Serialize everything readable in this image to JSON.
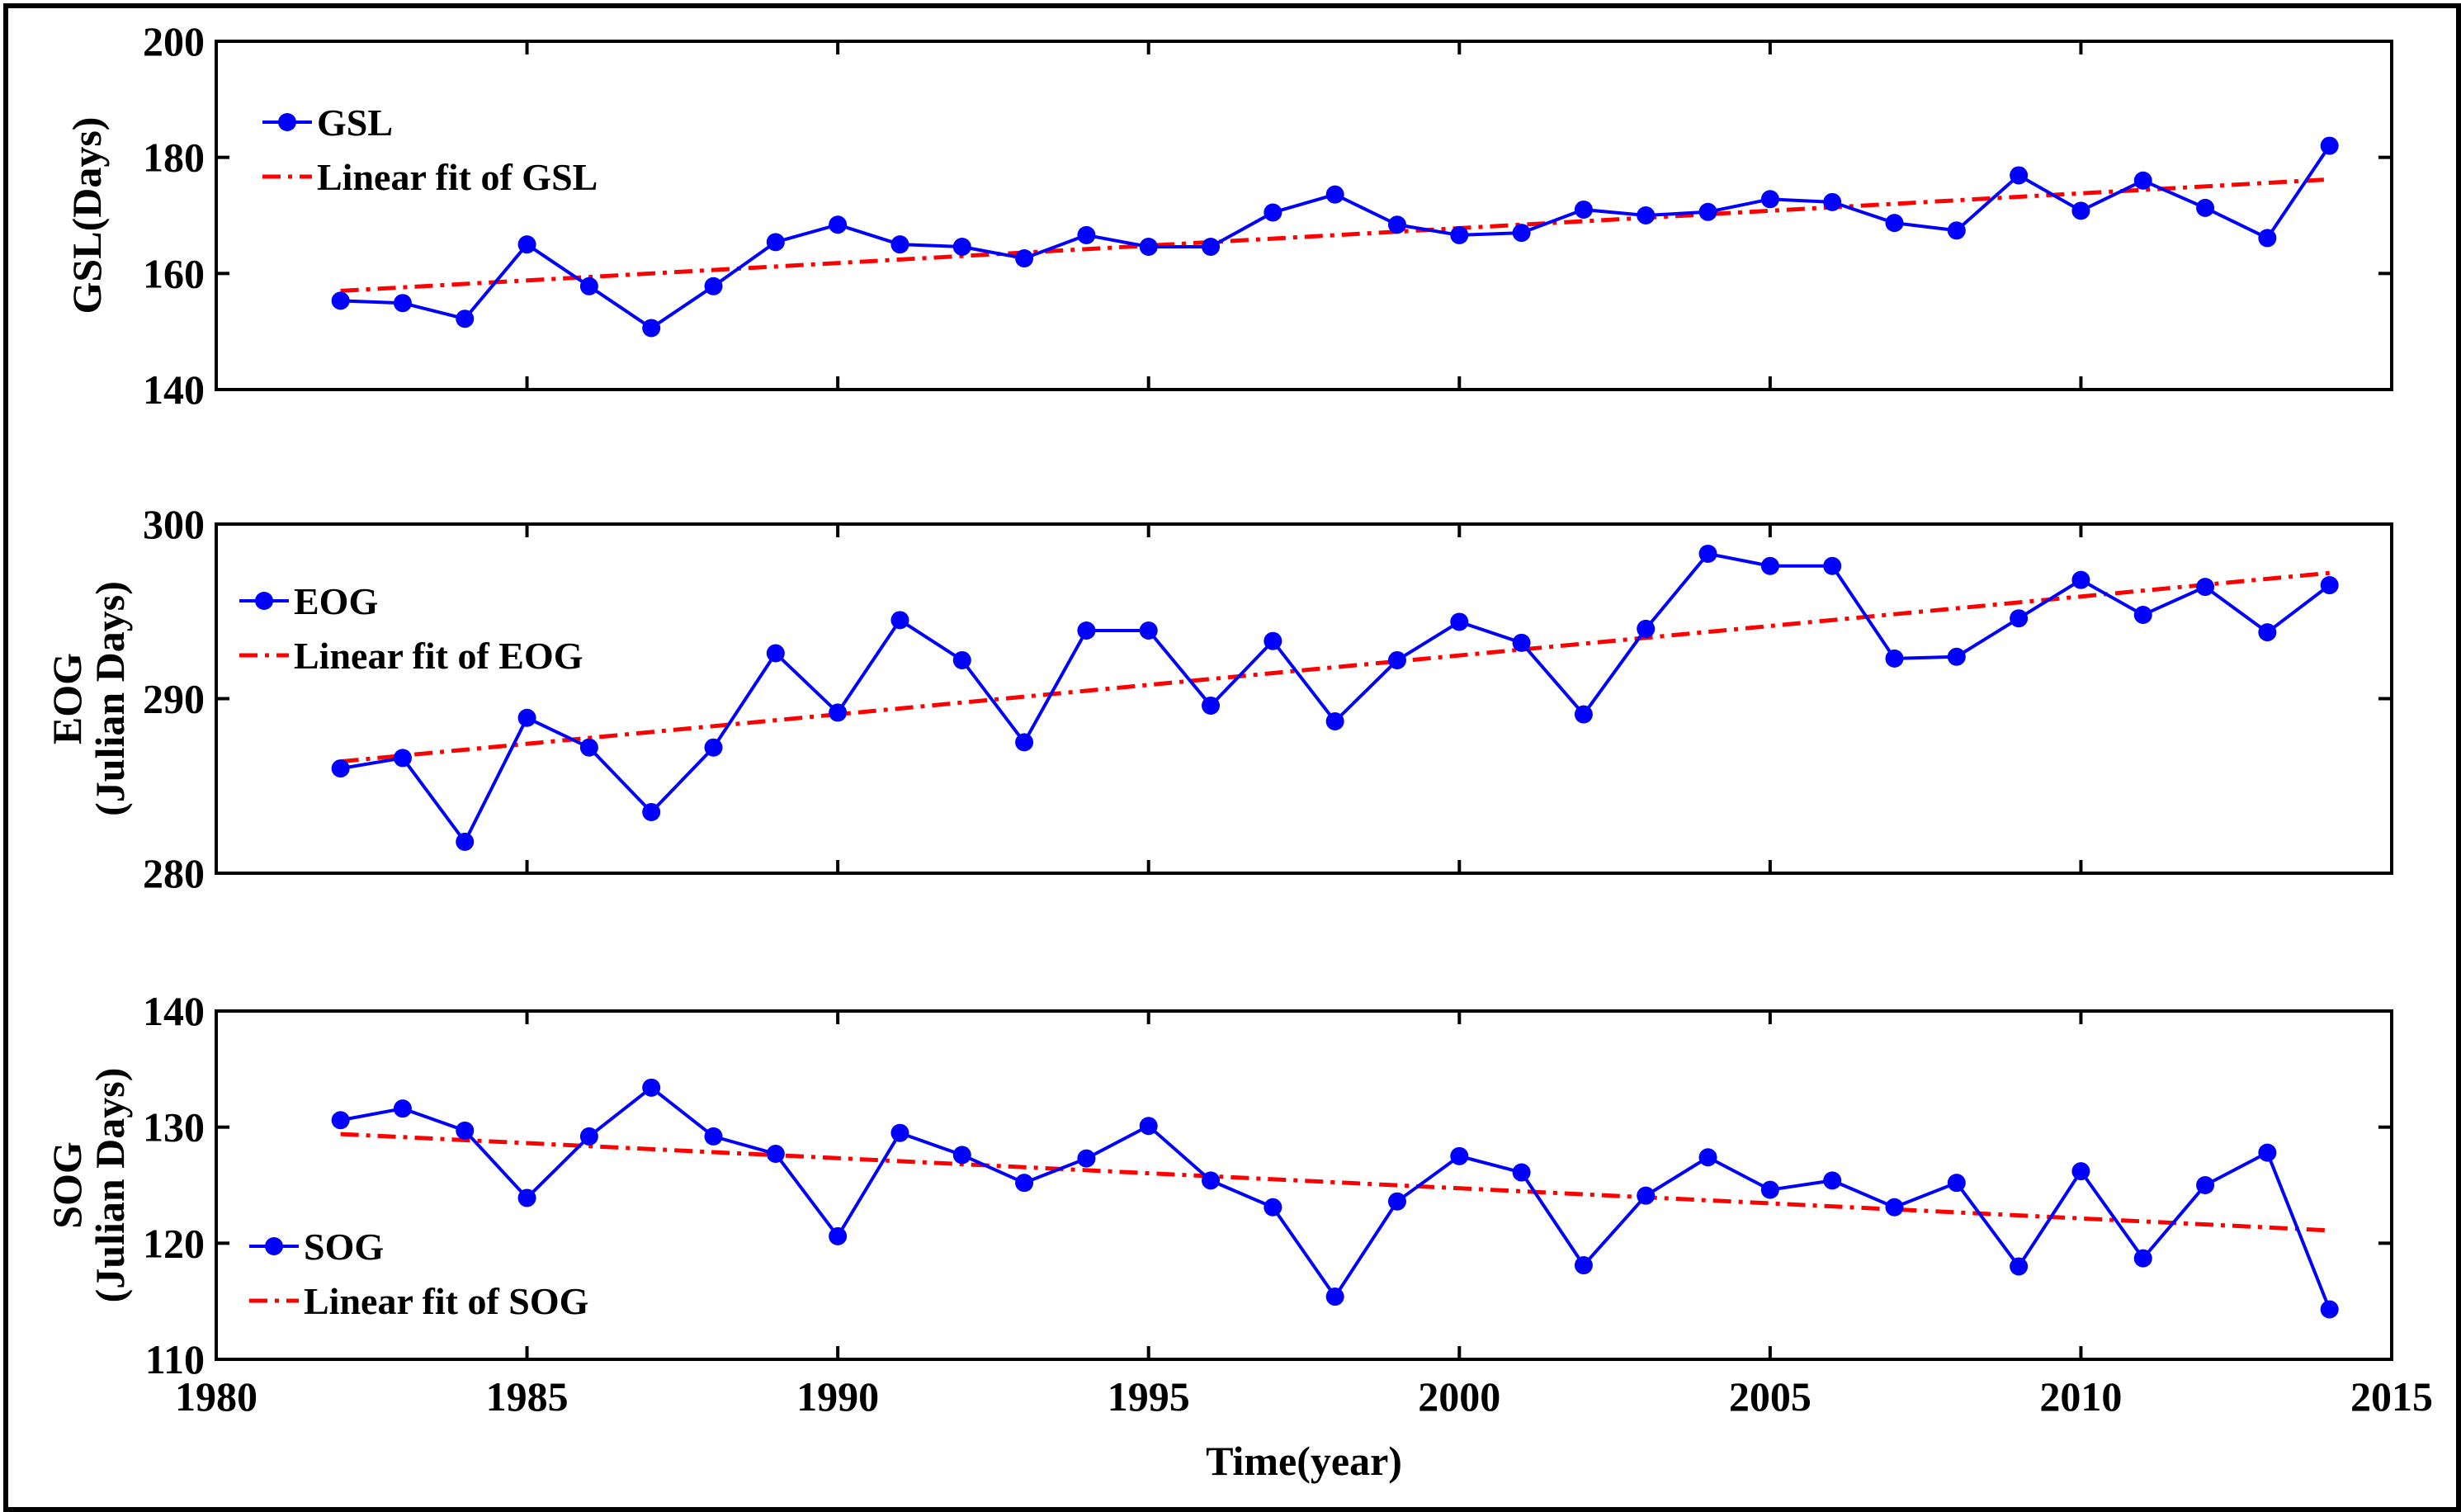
{
  "chart_data": [
    {
      "type": "line",
      "id": "gsl",
      "ylabel_lines": [
        "GSL(Days)"
      ],
      "ylim": [
        140,
        200
      ],
      "yticks": [
        140,
        160,
        180,
        200
      ],
      "xlim": [
        1980,
        2015
      ],
      "legend_position": "top-left",
      "series": [
        {
          "name": "GSL",
          "style": "line-marker",
          "x": [
            1982,
            1983,
            1984,
            1985,
            1986,
            1987,
            1988,
            1989,
            1990,
            1991,
            1992,
            1993,
            1994,
            1995,
            1996,
            1997,
            1998,
            1999,
            2000,
            2001,
            2002,
            2003,
            2004,
            2005,
            2006,
            2007,
            2008,
            2009,
            2010,
            2011,
            2012,
            2013,
            2014
          ],
          "values": [
            155.3,
            154.9,
            152.2,
            165.0,
            157.8,
            150.6,
            157.8,
            165.4,
            168.4,
            165.0,
            164.6,
            162.6,
            166.6,
            164.6,
            164.6,
            170.5,
            173.6,
            168.4,
            166.6,
            167.0,
            171.0,
            170.0,
            170.6,
            172.8,
            172.3,
            168.7,
            167.4,
            176.9,
            170.8,
            176.0,
            171.3,
            166.1,
            182.0
          ]
        },
        {
          "name": "Linear fit of GSL",
          "style": "dash-dot",
          "x": [
            1982,
            2014
          ],
          "values": [
            157.0,
            176.2
          ]
        }
      ]
    },
    {
      "type": "line",
      "id": "eog",
      "ylabel_lines": [
        "EOG",
        "(Julian Days)"
      ],
      "ylim": [
        280,
        300
      ],
      "yticks": [
        280,
        290,
        300
      ],
      "xlim": [
        1980,
        2015
      ],
      "legend_position": "top-left",
      "series": [
        {
          "name": "EOG",
          "style": "line-marker",
          "x": [
            1982,
            1983,
            1984,
            1985,
            1986,
            1987,
            1988,
            1989,
            1990,
            1991,
            1992,
            1993,
            1994,
            1995,
            1996,
            1997,
            1998,
            1999,
            2000,
            2001,
            2002,
            2003,
            2004,
            2005,
            2006,
            2007,
            2008,
            2009,
            2010,
            2011,
            2012,
            2013,
            2014
          ],
          "values": [
            286.0,
            286.6,
            281.8,
            288.9,
            287.2,
            283.5,
            287.2,
            292.6,
            289.2,
            294.5,
            292.2,
            287.5,
            293.9,
            293.9,
            289.6,
            293.3,
            288.7,
            292.2,
            294.4,
            293.2,
            289.1,
            294.0,
            298.3,
            297.6,
            297.6,
            292.3,
            292.4,
            294.6,
            296.8,
            294.8,
            296.4,
            293.8,
            296.5
          ]
        },
        {
          "name": "Linear fit of EOG",
          "style": "dash-dot",
          "x": [
            1982,
            2014
          ],
          "values": [
            286.4,
            297.2
          ]
        }
      ]
    },
    {
      "type": "line",
      "id": "sog",
      "ylabel_lines": [
        "SOG",
        "(Julian Days)"
      ],
      "ylim": [
        110,
        140
      ],
      "yticks": [
        110,
        120,
        130,
        140
      ],
      "xlim": [
        1980,
        2015
      ],
      "xticks": [
        1980,
        1985,
        1990,
        1995,
        2000,
        2005,
        2010,
        2015
      ],
      "xlabel": "Time(year)",
      "legend_position": "bottom-left",
      "series": [
        {
          "name": "SOG",
          "style": "line-marker",
          "x": [
            1982,
            1983,
            1984,
            1985,
            1986,
            1987,
            1988,
            1989,
            1990,
            1991,
            1992,
            1993,
            1994,
            1995,
            1996,
            1997,
            1998,
            1999,
            2000,
            2001,
            2002,
            2003,
            2004,
            2005,
            2006,
            2007,
            2008,
            2009,
            2010,
            2011,
            2012,
            2013,
            2014
          ],
          "values": [
            130.6,
            131.6,
            129.7,
            123.9,
            129.2,
            133.4,
            129.2,
            127.7,
            120.6,
            129.5,
            127.6,
            125.2,
            127.3,
            130.1,
            125.4,
            123.1,
            115.4,
            123.6,
            127.5,
            126.1,
            118.1,
            124.1,
            127.4,
            124.6,
            125.4,
            123.1,
            125.2,
            118.0,
            126.2,
            118.7,
            125.0,
            127.8,
            114.3
          ]
        },
        {
          "name": "Linear fit of SOG",
          "style": "dash-dot",
          "x": [
            1982,
            2014
          ],
          "values": [
            129.4,
            121.1
          ]
        }
      ]
    }
  ],
  "colors": {
    "data_line": "#0000ff",
    "fit_line": "#ff0000",
    "axis": "#000000"
  }
}
